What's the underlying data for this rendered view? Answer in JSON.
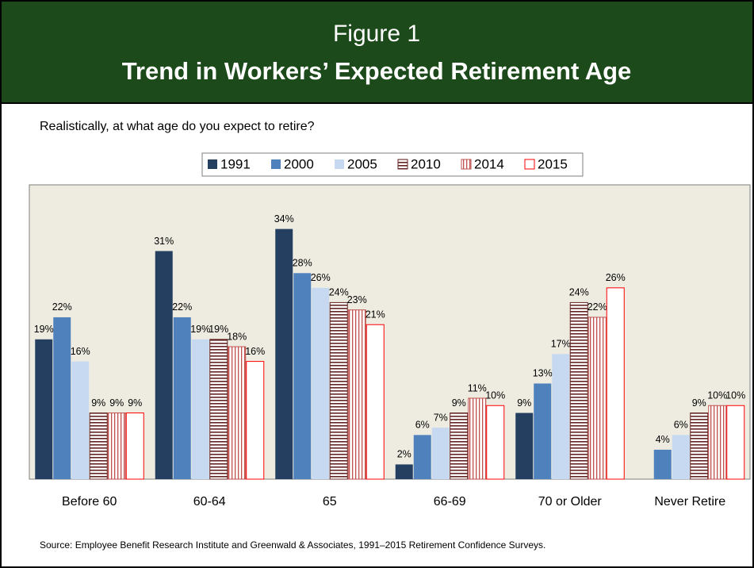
{
  "chart_data": {
    "type": "bar",
    "figure_label": "Figure 1",
    "title": "Trend in Workers’ Expected Retirement Age",
    "subtitle": "Realistically, at what age do you expect to retire?",
    "source": "Source:  Employee Benefit Research Institute and Greenwald & Associates, 1991–2015 Retirement Confidence Surveys.",
    "categories": [
      "Before 60",
      "60-64",
      "65",
      "66-69",
      "70 or Older",
      "Never Retire"
    ],
    "ylim": [
      0,
      40
    ],
    "legend": "top",
    "series": [
      {
        "name": "1991",
        "color": "#243f60",
        "pattern": "none",
        "values": [
          19,
          31,
          34,
          2,
          9,
          null
        ],
        "value_labels": [
          "19%",
          "31%",
          "34%",
          "2%",
          "9%",
          null
        ]
      },
      {
        "name": "2000",
        "color": "#4f81bd",
        "pattern": "none",
        "values": [
          22,
          22,
          28,
          6,
          13,
          4
        ],
        "value_labels": [
          "22%",
          "22%",
          "28%",
          "6%",
          "13%",
          "4%"
        ]
      },
      {
        "name": "2005",
        "color": "#c6d9f1",
        "pattern": "none",
        "values": [
          16,
          19,
          26,
          7,
          17,
          6
        ],
        "value_labels": [
          "16%",
          "19%",
          "26%",
          "7%",
          "17%",
          "6%"
        ]
      },
      {
        "name": "2010",
        "color": "#632523",
        "pattern": "horizontal",
        "values": [
          9,
          19,
          24,
          9,
          24,
          9
        ],
        "value_labels": [
          "9%",
          "19%",
          "24%",
          "9%",
          "24%",
          "9%"
        ]
      },
      {
        "name": "2014",
        "color": "#c0504d",
        "pattern": "vertical",
        "values": [
          9,
          18,
          23,
          11,
          22,
          10
        ],
        "value_labels": [
          "9%",
          "18%",
          "23%",
          "11%",
          "22%",
          "10%"
        ]
      },
      {
        "name": "2015",
        "color": "#ff0000",
        "pattern": "outline",
        "values": [
          9,
          16,
          21,
          10,
          26,
          10
        ],
        "value_labels": [
          "9%",
          "16%",
          "21%",
          "10%",
          "26%",
          "10%"
        ]
      }
    ]
  }
}
